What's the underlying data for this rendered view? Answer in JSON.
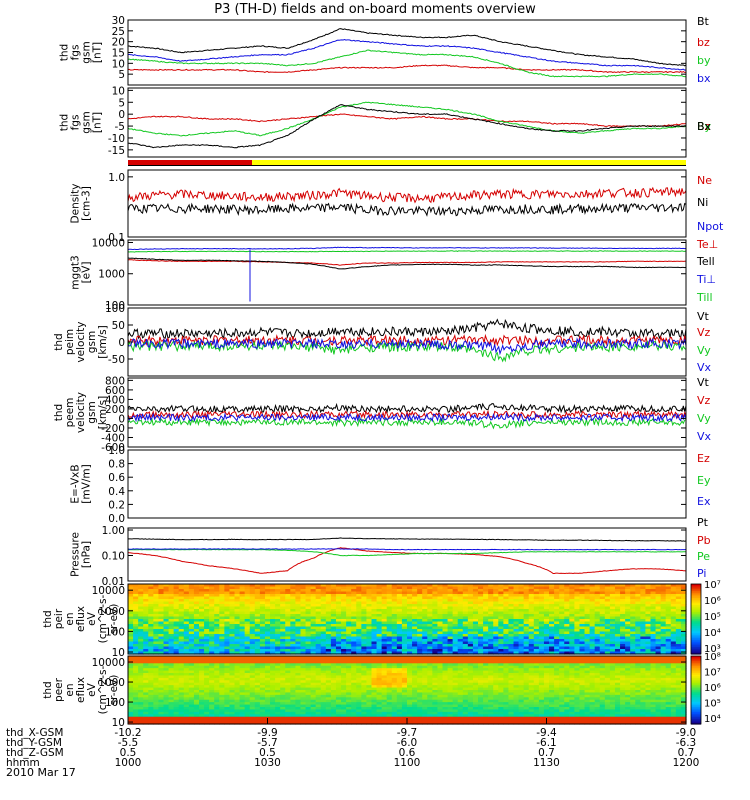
{
  "title": "P3 (TH-D) fields and on-board moments overview",
  "date": "2010 Mar 17",
  "colors": {
    "black": "#000000",
    "red": "#d40000",
    "green": "#12c820",
    "blue": "#1010e0",
    "yellow": "#ffff00"
  },
  "chart_data": [
    {
      "id": "fgs_mag",
      "type": "line",
      "ylabel_lines": [
        "thd",
        "fgs",
        "gsm",
        "[nT]"
      ],
      "ylim": [
        0,
        30
      ],
      "yticks": [
        "5",
        "10",
        "15",
        "20",
        "25",
        "30"
      ],
      "yticks_values": [
        5,
        10,
        15,
        20,
        25,
        30
      ],
      "series": [
        {
          "name": "Bt",
          "color": "black",
          "values": [
            18,
            17,
            15,
            16,
            17,
            18,
            17,
            21,
            26,
            24,
            23,
            22,
            22,
            23,
            20,
            18,
            16,
            14,
            13,
            12,
            10,
            9
          ]
        },
        {
          "name": "bz",
          "color": "red",
          "values": [
            7,
            7,
            7,
            7,
            7,
            6,
            6,
            7,
            8,
            8,
            8,
            9,
            9,
            8,
            8,
            7,
            7,
            7,
            6,
            6,
            6,
            6
          ]
        },
        {
          "name": "by",
          "color": "green",
          "values": [
            12,
            11,
            10,
            10,
            10,
            10,
            9,
            10,
            13,
            16,
            15,
            14,
            14,
            13,
            10,
            6,
            4,
            4,
            4,
            5,
            5,
            4
          ]
        },
        {
          "name": "bx",
          "color": "blue",
          "values": [
            14,
            13,
            11,
            12,
            13,
            14,
            14,
            17,
            21,
            20,
            19,
            18,
            18,
            17,
            15,
            13,
            11,
            10,
            9,
            9,
            8,
            7
          ]
        }
      ]
    },
    {
      "id": "fgs_comp",
      "type": "line",
      "ylabel_lines": [
        "thd",
        "fgs",
        "gsm",
        "[nT]"
      ],
      "ylim": [
        -18,
        11
      ],
      "yticks": [
        "-15",
        "-10",
        "-5",
        "0",
        "5",
        "10"
      ],
      "yticks_values": [
        -15,
        -10,
        -5,
        0,
        5,
        10
      ],
      "series": [
        {
          "name": "Bz",
          "color": "red",
          "values": [
            -2,
            -1,
            -1,
            -2,
            -2,
            -3,
            -2,
            -1,
            0,
            -1,
            -2,
            -1,
            -2,
            -2,
            -3,
            -3,
            -4,
            -4,
            -5,
            -5,
            -5,
            -4
          ]
        },
        {
          "name": "By",
          "color": "green",
          "values": [
            -6,
            -8,
            -9,
            -8,
            -7,
            -9,
            -6,
            -2,
            3,
            5,
            4,
            3,
            2,
            0,
            -3,
            -5,
            -7,
            -8,
            -7,
            -6,
            -6,
            -5
          ]
        },
        {
          "name": "Bx",
          "color": "black",
          "values": [
            -12,
            -14,
            -13,
            -13,
            -14,
            -13,
            -9,
            -2,
            4,
            2,
            1,
            0,
            0,
            -2,
            -4,
            -6,
            -7,
            -7,
            -6,
            -5,
            -5,
            -5
          ]
        }
      ]
    },
    {
      "id": "density",
      "type": "line",
      "log": true,
      "ylabel_lines": [
        "Density",
        "[cm-3]"
      ],
      "ylim": [
        0.1,
        1.3
      ],
      "yticks": [
        "0.1",
        "1.0"
      ],
      "yticks_values": [
        0.1,
        1.0
      ],
      "series": [
        {
          "name": "Ne",
          "color": "red",
          "values": [
            0.45,
            0.5,
            0.52,
            0.5,
            0.48,
            0.46,
            0.48,
            0.5,
            0.55,
            0.48,
            0.46,
            0.44,
            0.46,
            0.5,
            0.52,
            0.52,
            0.52,
            0.52,
            0.55,
            0.55,
            0.56,
            0.58
          ]
        },
        {
          "name": "Ni",
          "color": "black",
          "values": [
            0.3,
            0.3,
            0.3,
            0.3,
            0.29,
            0.28,
            0.3,
            0.3,
            0.32,
            0.28,
            0.28,
            0.27,
            0.27,
            0.28,
            0.29,
            0.3,
            0.29,
            0.3,
            0.3,
            0.31,
            0.31,
            0.32
          ]
        },
        {
          "name": "Npot",
          "color": "blue",
          "values": []
        }
      ]
    },
    {
      "id": "temp",
      "type": "line",
      "log": true,
      "ylabel_lines": [
        "mggt3",
        "[eV]"
      ],
      "ylim": [
        100,
        12000
      ],
      "yticks": [
        "100",
        "1000",
        "10000"
      ],
      "yticks_values": [
        100,
        1000,
        10000
      ],
      "series": [
        {
          "name": "Te⊥",
          "color": "red",
          "values": [
            2800,
            2600,
            2500,
            2500,
            2500,
            2400,
            2300,
            2200,
            1900,
            2200,
            2200,
            2300,
            2300,
            2300,
            2400,
            2400,
            2400,
            2400,
            2400,
            2500,
            2500,
            2500
          ]
        },
        {
          "name": "Tell",
          "color": "black",
          "values": [
            3200,
            2900,
            2700,
            2700,
            2600,
            2500,
            2300,
            2000,
            1400,
            1700,
            1900,
            2000,
            2000,
            1900,
            1900,
            1800,
            1700,
            1700,
            1700,
            1600,
            1600,
            1600
          ]
        },
        {
          "name": "Ti⊥",
          "color": "blue",
          "values": [
            6000,
            6200,
            6300,
            6300,
            6300,
            6300,
            6300,
            6500,
            7000,
            6800,
            6800,
            6700,
            6800,
            6700,
            6700,
            6700,
            6600,
            6600,
            6500,
            6500,
            6500,
            6500
          ]
        },
        {
          "name": "Till",
          "color": "green",
          "values": [
            5000,
            5100,
            5200,
            5200,
            5200,
            5100,
            5100,
            5100,
            5200,
            5200,
            5300,
            5300,
            5300,
            5300,
            5300,
            5300,
            5300,
            5300,
            5300,
            5300,
            5300,
            5300
          ]
        }
      ]
    },
    {
      "id": "peim_vel",
      "type": "line",
      "ylabel_lines": [
        "thd",
        "peim",
        "velocity",
        "gsm",
        "[km/s]"
      ],
      "ylim": [
        -100,
        100
      ],
      "yticks": [
        "-50",
        "0",
        "50",
        "100"
      ],
      "yticks_values": [
        -50,
        0,
        50,
        100
      ],
      "series": [
        {
          "name": "Vt",
          "color": "black",
          "values": [
            25,
            25,
            25,
            25,
            25,
            30,
            25,
            25,
            35,
            30,
            30,
            30,
            30,
            40,
            55,
            40,
            35,
            30,
            30,
            25,
            25,
            25
          ]
        },
        {
          "name": "Vz",
          "color": "red",
          "values": [
            5,
            5,
            5,
            5,
            5,
            5,
            5,
            5,
            5,
            5,
            5,
            5,
            5,
            5,
            5,
            5,
            5,
            5,
            5,
            5,
            5,
            5
          ]
        },
        {
          "name": "Vy",
          "color": "green",
          "values": [
            -12,
            -12,
            -12,
            -12,
            -12,
            -12,
            -15,
            -15,
            -25,
            -15,
            -15,
            -15,
            -15,
            -25,
            -45,
            -25,
            -20,
            -15,
            -15,
            -12,
            -12,
            -12
          ]
        },
        {
          "name": "Vx",
          "color": "blue",
          "values": [
            -5,
            -5,
            -5,
            -5,
            -5,
            -5,
            -5,
            -5,
            -10,
            -5,
            -5,
            -5,
            -10,
            -10,
            -20,
            -10,
            -5,
            -5,
            -5,
            -5,
            -5,
            -5
          ]
        }
      ]
    },
    {
      "id": "peem_vel",
      "type": "line",
      "ylabel_lines": [
        "thd",
        "peem",
        "velocity",
        "gsm",
        "[km/s]"
      ],
      "ylim": [
        -600,
        850
      ],
      "yticks": [
        "-600",
        "-400",
        "-200",
        "0",
        "200",
        "400",
        "600",
        "800"
      ],
      "yticks_values": [
        -600,
        -400,
        -200,
        0,
        200,
        400,
        600,
        800
      ],
      "series": [
        {
          "name": "Vt",
          "color": "black",
          "values": [
            200,
            200,
            200,
            200,
            200,
            200,
            200,
            200,
            230,
            200,
            200,
            200,
            200,
            220,
            260,
            220,
            200,
            200,
            200,
            200,
            200,
            200
          ]
        },
        {
          "name": "Vz",
          "color": "red",
          "values": [
            80,
            80,
            80,
            80,
            80,
            80,
            80,
            80,
            80,
            80,
            80,
            80,
            80,
            80,
            80,
            80,
            80,
            80,
            80,
            80,
            80,
            80
          ]
        },
        {
          "name": "Vy",
          "color": "green",
          "values": [
            -80,
            -80,
            -80,
            -80,
            -80,
            -80,
            -80,
            -80,
            -90,
            -80,
            -80,
            -80,
            -80,
            -100,
            -150,
            -90,
            -80,
            -80,
            -80,
            -80,
            -80,
            -80
          ]
        },
        {
          "name": "Vx",
          "color": "blue",
          "values": [
            20,
            20,
            20,
            20,
            20,
            20,
            20,
            20,
            30,
            20,
            20,
            20,
            20,
            30,
            40,
            20,
            20,
            20,
            20,
            20,
            20,
            20
          ]
        }
      ]
    },
    {
      "id": "efield",
      "type": "line",
      "ylabel_lines": [
        "E=-VxB",
        "[mV/m]"
      ],
      "ylim": [
        0,
        1
      ],
      "yticks": [
        "0.0",
        "0.2",
        "0.4",
        "0.6",
        "0.8",
        "1.0"
      ],
      "yticks_values": [
        0,
        0.2,
        0.4,
        0.6,
        0.8,
        1.0
      ],
      "series": [
        {
          "name": "Ez",
          "color": "red",
          "values": []
        },
        {
          "name": "Ey",
          "color": "green",
          "values": []
        },
        {
          "name": "Ex",
          "color": "blue",
          "values": []
        }
      ]
    },
    {
      "id": "pressure",
      "type": "line",
      "log": true,
      "ylabel_lines": [
        "Pressure",
        "[nPa]"
      ],
      "ylim": [
        0.01,
        1.2
      ],
      "yticks": [
        "0.01",
        "0.10",
        "1.00"
      ],
      "yticks_values": [
        0.01,
        0.1,
        1.0
      ],
      "series": [
        {
          "name": "Pt",
          "color": "black",
          "values": [
            0.45,
            0.44,
            0.42,
            0.42,
            0.43,
            0.42,
            0.42,
            0.43,
            0.48,
            0.46,
            0.45,
            0.44,
            0.44,
            0.43,
            0.42,
            0.41,
            0.4,
            0.4,
            0.39,
            0.38,
            0.38,
            0.37
          ]
        },
        {
          "name": "Pb",
          "color": "red",
          "values": [
            0.13,
            0.1,
            0.06,
            0.04,
            0.03,
            0.02,
            0.025,
            0.08,
            0.2,
            0.15,
            0.13,
            0.12,
            0.12,
            0.11,
            0.09,
            0.05,
            0.02,
            0.02,
            0.025,
            0.03,
            0.03,
            0.025
          ]
        },
        {
          "name": "Pe",
          "color": "green",
          "values": [
            0.17,
            0.17,
            0.17,
            0.17,
            0.17,
            0.17,
            0.16,
            0.14,
            0.1,
            0.1,
            0.11,
            0.12,
            0.12,
            0.12,
            0.13,
            0.14,
            0.14,
            0.14,
            0.14,
            0.14,
            0.14,
            0.14
          ]
        },
        {
          "name": "Pi",
          "color": "blue",
          "values": [
            0.18,
            0.18,
            0.18,
            0.18,
            0.18,
            0.18,
            0.18,
            0.18,
            0.18,
            0.18,
            0.17,
            0.17,
            0.17,
            0.17,
            0.17,
            0.17,
            0.17,
            0.17,
            0.17,
            0.17,
            0.17,
            0.17
          ]
        }
      ]
    },
    {
      "id": "peir_spec",
      "type": "heatmap",
      "ylabel_lines": [
        "thd",
        "peir",
        "en",
        "eflux",
        "eV",
        "(cm^2-s-",
        "sr-eV)"
      ],
      "log": true,
      "ylim": [
        8,
        20000
      ],
      "yticks": [
        "10",
        "100",
        "1000",
        "10000"
      ],
      "yticks_values": [
        10,
        100,
        1000,
        10000
      ],
      "colorbar": {
        "labels": [
          "10³",
          "10⁴",
          "10⁵",
          "10⁶",
          "10⁷"
        ]
      }
    },
    {
      "id": "peer_spec",
      "type": "heatmap",
      "ylabel_lines": [
        "thd",
        "peer",
        "en",
        "eflux",
        "eV",
        "(cm^2-s-",
        "sr-eV)"
      ],
      "log": true,
      "ylim": [
        8,
        20000
      ],
      "yticks": [
        "10",
        "100",
        "1000",
        "10000"
      ],
      "yticks_values": [
        10,
        100,
        1000,
        10000
      ],
      "colorbar": {
        "labels": [
          "10⁴",
          "10⁵",
          "10⁶",
          "10⁷",
          "10⁸"
        ]
      }
    }
  ],
  "xaxis": {
    "rows": [
      {
        "label": "thd_X-GSM",
        "values": [
          "-10.2",
          "-9.9",
          "-9.7",
          "-9.4",
          "-9.0"
        ]
      },
      {
        "label": "thd_Y-GSM",
        "values": [
          "-5.5",
          "-5.7",
          "-6.0",
          "-6.1",
          "-6.3"
        ]
      },
      {
        "label": "thd_Z-GSM",
        "values": [
          "0.5",
          "0.5",
          "0.6",
          "0.7",
          "0.7"
        ]
      },
      {
        "label": "hhmm",
        "values": [
          "1000",
          "1030",
          "1100",
          "1130",
          "1200"
        ]
      }
    ]
  }
}
